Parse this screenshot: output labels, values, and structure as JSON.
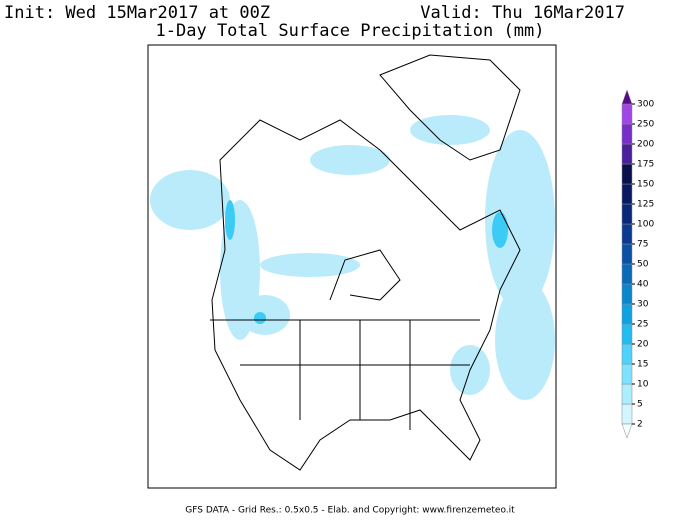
{
  "header": {
    "init": "Init: Wed 15Mar2017 at 00Z",
    "valid": "Valid: Thu 16Mar2017",
    "title": "1-Day Total Surface Precipitation (mm)"
  },
  "colorbar": {
    "levels": [
      2,
      5,
      10,
      15,
      20,
      25,
      30,
      40,
      50,
      75,
      100,
      125,
      150,
      175,
      200,
      250,
      300
    ],
    "colors": [
      "#d2f6ff",
      "#aaeeff",
      "#7ee2ff",
      "#4fd2fb",
      "#22bdf0",
      "#0ea2e0",
      "#0a86cc",
      "#0a6ab8",
      "#0a50a4",
      "#0a3a90",
      "#0a287a",
      "#0a1a62",
      "#0a104a",
      "#4a1e9c",
      "#7a2ec8",
      "#a046e6"
    ],
    "below_color": "#f4fdff",
    "above_color": "#5a0a8c"
  },
  "footer": "GFS DATA - Grid Res.: 0.5x0.5 - Elab. and Copyright: www.firenzemeteo.it"
}
